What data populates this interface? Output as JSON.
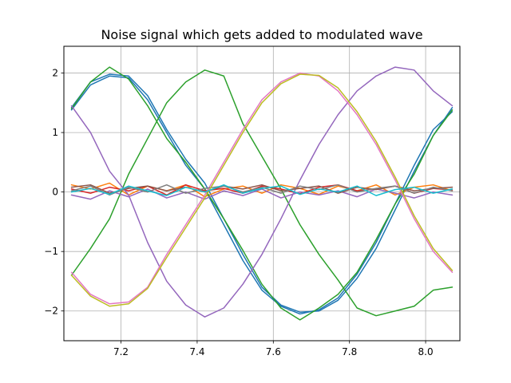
{
  "chart_data": {
    "type": "line",
    "title": "Noise signal which gets added to modulated wave",
    "xlabel": "",
    "ylabel": "",
    "xlim": [
      7.05,
      8.09
    ],
    "ylim": [
      -2.5,
      2.45
    ],
    "xticks": [
      7.2,
      7.4,
      7.6,
      7.8,
      8.0
    ],
    "xtick_labels": [
      "7.2",
      "7.4",
      "7.6",
      "7.8",
      "8.0"
    ],
    "yticks": [
      -2,
      -1,
      0,
      1,
      2
    ],
    "ytick_labels": [
      "−2",
      "−1",
      "0",
      "1",
      "2"
    ],
    "grid": true,
    "legend": "none",
    "x": [
      7.07,
      7.12,
      7.17,
      7.22,
      7.27,
      7.32,
      7.37,
      7.42,
      7.47,
      7.52,
      7.57,
      7.62,
      7.67,
      7.72,
      7.77,
      7.82,
      7.87,
      7.92,
      7.97,
      8.02,
      8.07
    ],
    "series": [
      {
        "color": "#1f77b4",
        "values": [
          1.42,
          1.85,
          1.98,
          1.95,
          1.62,
          1.05,
          0.55,
          0.15,
          -0.45,
          -1.05,
          -1.6,
          -1.9,
          -2.02,
          -2.0,
          -1.82,
          -1.45,
          -0.95,
          -0.3,
          0.35,
          0.95,
          1.42
        ]
      },
      {
        "color": "#1f77b4",
        "values": [
          1.38,
          1.8,
          1.95,
          1.92,
          1.55,
          1.0,
          0.45,
          0.05,
          -0.55,
          -1.15,
          -1.65,
          -1.92,
          -2.05,
          -1.98,
          -1.78,
          -1.38,
          -0.85,
          -0.2,
          0.45,
          1.05,
          1.35
        ]
      },
      {
        "color": "#ff7f0e",
        "values": [
          0.12,
          0.05,
          0.15,
          -0.05,
          0.1,
          0.02,
          0.12,
          -0.08,
          0.05,
          0.1,
          -0.02,
          0.12,
          0.06,
          -0.04,
          0.1,
          0.02,
          0.12,
          -0.05,
          0.08,
          0.12,
          0.02
        ]
      },
      {
        "color": "#2ca02c",
        "values": [
          1.4,
          1.85,
          2.1,
          1.9,
          1.45,
          0.9,
          0.5,
          0.05,
          -0.45,
          -0.98,
          -1.55,
          -1.95,
          -2.15,
          -1.95,
          -1.72,
          -1.35,
          -0.8,
          -0.2,
          0.3,
          0.95,
          1.38
        ]
      },
      {
        "color": "#2ca02c",
        "values": [
          -1.4,
          -0.95,
          -0.45,
          0.3,
          0.9,
          1.5,
          1.85,
          2.05,
          1.95,
          1.15,
          0.6,
          0.05,
          -0.55,
          -1.05,
          -1.48,
          -1.95,
          -2.08,
          -2.0,
          -1.92,
          -1.65,
          -1.6
        ]
      },
      {
        "color": "#d62728",
        "values": [
          0.05,
          -0.02,
          0.08,
          0.02,
          0.1,
          -0.05,
          0.12,
          0.02,
          0.06,
          -0.02,
          0.1,
          0.05,
          -0.03,
          0.08,
          0.12,
          0.02,
          0.05,
          0.1,
          -0.02,
          0.06,
          0.03
        ]
      },
      {
        "color": "#9467bd",
        "values": [
          1.45,
          1.0,
          0.35,
          -0.05,
          -0.85,
          -1.5,
          -1.9,
          -2.1,
          -1.95,
          -1.55,
          -1.05,
          -0.45,
          0.2,
          0.8,
          1.3,
          1.7,
          1.95,
          2.1,
          2.05,
          1.7,
          1.45
        ]
      },
      {
        "color": "#9467bd",
        "values": [
          -0.05,
          -0.12,
          0.02,
          -0.08,
          0.05,
          -0.1,
          0.0,
          -0.12,
          0.02,
          -0.06,
          0.05,
          -0.1,
          0.0,
          -0.05,
          0.02,
          -0.08,
          0.05,
          -0.02,
          -0.1,
          0.0,
          -0.05
        ]
      },
      {
        "color": "#8c564b",
        "values": [
          0.08,
          0.12,
          -0.02,
          0.06,
          0.1,
          0.02,
          0.08,
          0.0,
          0.1,
          0.05,
          0.12,
          0.02,
          0.06,
          0.1,
          -0.02,
          0.08,
          0.04,
          0.1,
          0.02,
          0.06,
          0.08
        ]
      },
      {
        "color": "#e377c2",
        "values": [
          -1.35,
          -1.72,
          -1.88,
          -1.85,
          -1.6,
          -1.05,
          -0.55,
          -0.05,
          0.5,
          1.05,
          1.55,
          1.85,
          2.0,
          1.95,
          1.7,
          1.3,
          0.8,
          0.2,
          -0.45,
          -1.0,
          -1.35
        ]
      },
      {
        "color": "#7f7f7f",
        "values": [
          0.02,
          0.1,
          -0.05,
          0.08,
          0.0,
          0.12,
          -0.02,
          0.06,
          0.1,
          0.0,
          0.08,
          -0.02,
          0.1,
          0.04,
          0.12,
          0.0,
          0.06,
          0.1,
          -0.02,
          0.08,
          0.02
        ]
      },
      {
        "color": "#bcbd22",
        "values": [
          -1.4,
          -1.75,
          -1.92,
          -1.88,
          -1.62,
          -1.1,
          -0.6,
          -0.1,
          0.45,
          1.0,
          1.5,
          1.82,
          1.98,
          1.96,
          1.75,
          1.35,
          0.85,
          0.25,
          -0.4,
          -0.95,
          -1.32
        ]
      },
      {
        "color": "#17becf",
        "values": [
          0.0,
          0.06,
          -0.04,
          0.1,
          0.02,
          -0.06,
          0.08,
          0.0,
          0.12,
          -0.02,
          0.06,
          0.1,
          -0.04,
          0.05,
          0.0,
          0.1,
          -0.06,
          0.04,
          0.08,
          -0.02,
          0.05
        ]
      }
    ]
  }
}
